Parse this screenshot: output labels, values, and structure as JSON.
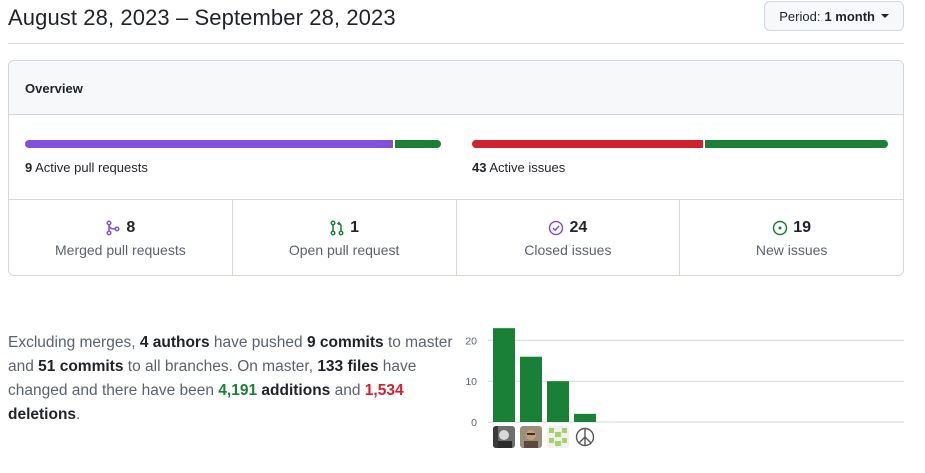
{
  "header": {
    "date_range": "August 28, 2023 – September 28, 2023",
    "period_prefix": "Period:",
    "period_value": "1 month"
  },
  "overview": {
    "title": "Overview",
    "pull_requests_bar": {
      "count": "9",
      "label": "Active pull requests",
      "segments": [
        {
          "name": "merged",
          "fraction": 0.889,
          "color": "#8250df"
        },
        {
          "name": "open",
          "fraction": 0.111,
          "color": "#1a7f37"
        }
      ]
    },
    "issues_bar": {
      "count": "43",
      "label": "Active issues",
      "segments": [
        {
          "name": "closed",
          "fraction": 0.558,
          "color": "#cf222e"
        },
        {
          "name": "new",
          "fraction": 0.442,
          "color": "#1a7f37"
        }
      ]
    },
    "stats": [
      {
        "value": "8",
        "label": "Merged pull requests",
        "icon": "git-merge-icon",
        "color": "#8250df"
      },
      {
        "value": "1",
        "label": "Open pull request",
        "icon": "git-pull-request-icon",
        "color": "#1a7f37"
      },
      {
        "value": "24",
        "label": "Closed issues",
        "icon": "issue-closed-icon",
        "color": "#8250df"
      },
      {
        "value": "19",
        "label": "New issues",
        "icon": "issue-opened-icon",
        "color": "#1a7f37"
      }
    ]
  },
  "summary": {
    "t1": "Excluding merges, ",
    "authors": "4 authors",
    "t2": " have pushed ",
    "commits_master": "9 commits",
    "t3": " to master and ",
    "commits_all": "51 commits",
    "t4": " to all branches. On master, ",
    "files": "133 files",
    "t5": " have changed and there have been ",
    "additions_num": "4,191",
    "additions_word": " additions",
    "t6": " and ",
    "deletions_num": "1,534",
    "deletions_word": " deletions",
    "t7": "."
  },
  "chart_data": {
    "type": "bar",
    "categories": [
      "author-1",
      "author-2",
      "author-3",
      "author-4"
    ],
    "values": [
      23,
      16,
      10,
      2
    ],
    "ylim": [
      0,
      25
    ],
    "yticks": [
      0,
      10,
      20
    ],
    "grid": true,
    "bar_color": "#1a7f37",
    "avatars": [
      "photo-avatar-bw",
      "photo-avatar-man",
      "identicon-avatar-green",
      "peace-sign-avatar"
    ]
  }
}
